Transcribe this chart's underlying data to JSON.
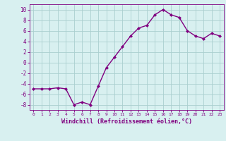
{
  "x": [
    0,
    1,
    2,
    3,
    4,
    5,
    6,
    7,
    8,
    9,
    10,
    11,
    12,
    13,
    14,
    15,
    16,
    17,
    18,
    19,
    20,
    21,
    22,
    23
  ],
  "y": [
    -5,
    -5,
    -5,
    -4.8,
    -5,
    -8,
    -7.5,
    -8,
    -4.5,
    -1,
    1,
    3,
    5,
    6.5,
    7,
    9,
    10,
    9,
    8.5,
    6,
    5,
    4.5,
    5.5,
    5
  ],
  "line_color": "#800080",
  "marker": "D",
  "marker_size": 2.0,
  "background_color": "#d8f0f0",
  "grid_color": "#aacfcf",
  "xlabel": "Windchill (Refroidissement éolien,°C)",
  "xlabel_color": "#800080",
  "tick_color": "#800080",
  "ylim": [
    -9,
    11
  ],
  "yticks": [
    -8,
    -6,
    -4,
    -2,
    0,
    2,
    4,
    6,
    8,
    10
  ],
  "xlim": [
    -0.5,
    23.5
  ],
  "xticks": [
    0,
    1,
    2,
    3,
    4,
    5,
    6,
    7,
    8,
    9,
    10,
    11,
    12,
    13,
    14,
    15,
    16,
    17,
    18,
    19,
    20,
    21,
    22,
    23
  ],
  "linewidth": 1.0
}
